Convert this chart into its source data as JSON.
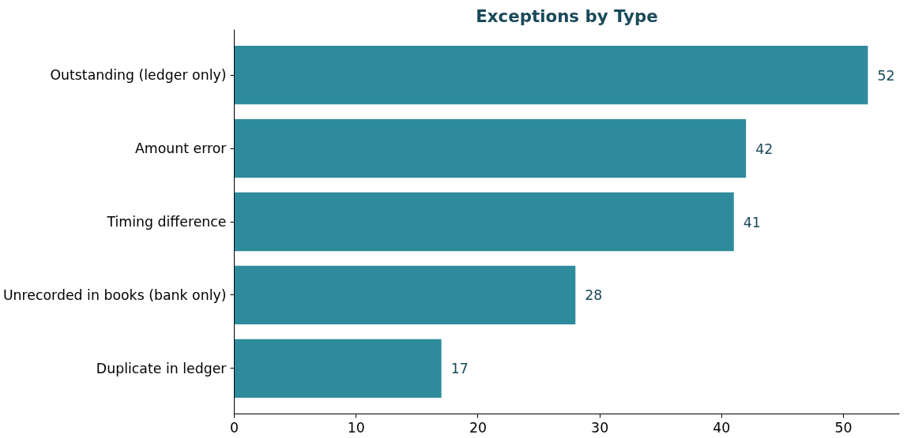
{
  "chart_data": {
    "type": "bar",
    "orientation": "horizontal",
    "title": "Exceptions by Type",
    "categories": [
      "Outstanding (ledger only)",
      "Amount error",
      "Timing difference",
      "Unrecorded in books (bank only)",
      "Duplicate in ledger"
    ],
    "values": [
      52,
      42,
      41,
      28,
      17
    ],
    "color": "#2e8b9c",
    "xlim": [
      0,
      54.6
    ],
    "xticks": [
      0,
      10,
      20,
      30,
      40,
      50
    ],
    "data_labels": true,
    "grid": false
  }
}
